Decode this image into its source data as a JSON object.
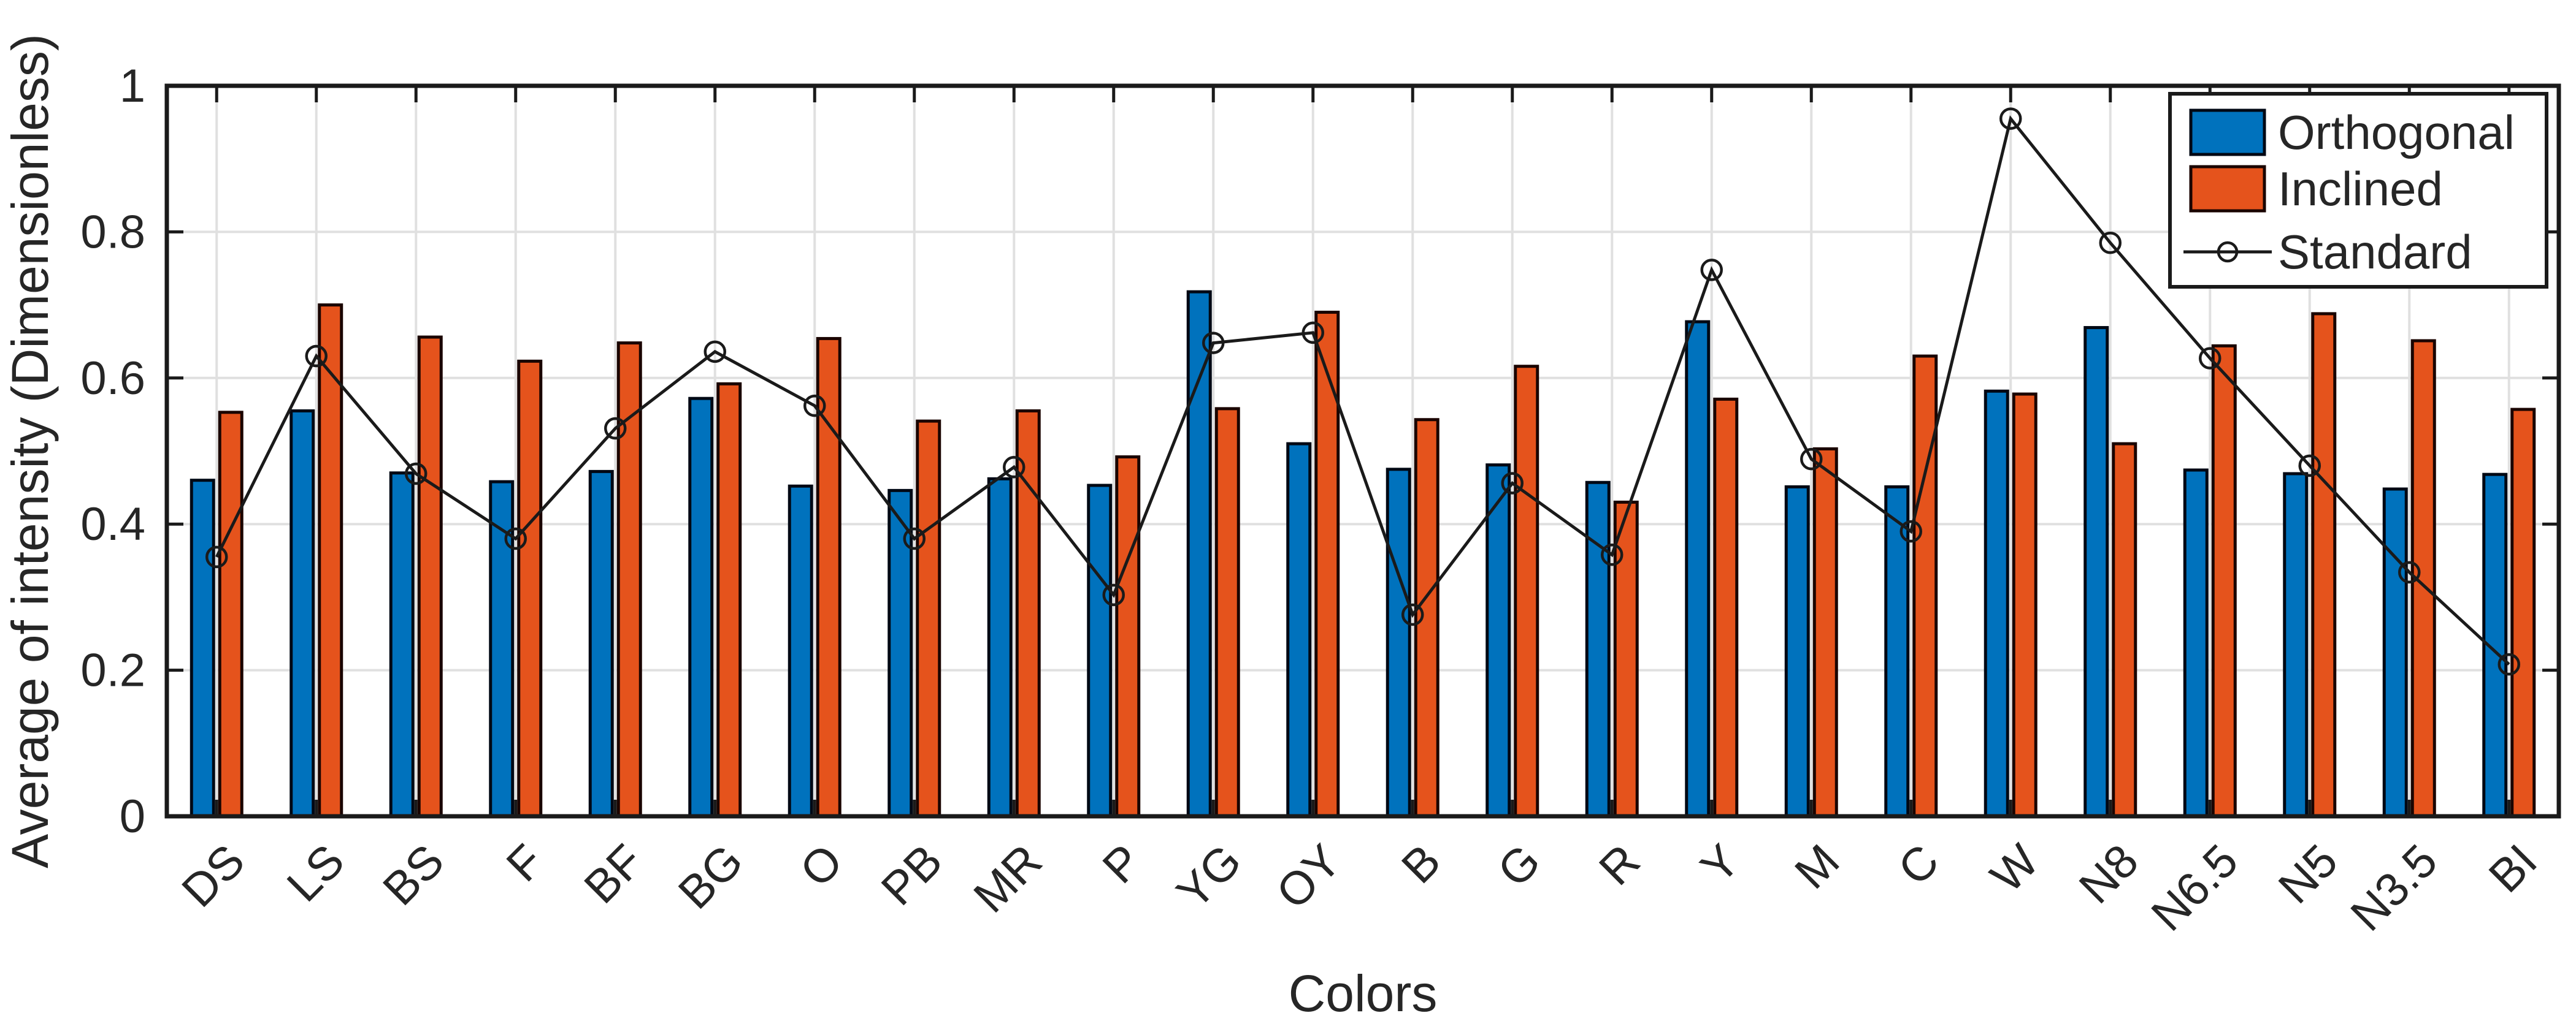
{
  "figure": {
    "background": "#ffffff",
    "text_color": "#262626",
    "axis_color": "#1a1a1a",
    "grid_color": "#e0e0e0"
  },
  "chart_data": {
    "type": "bar",
    "title": "",
    "xlabel": "Colors",
    "ylabel": "Average of intensity (Dimensionless)",
    "ylim": [
      0,
      1
    ],
    "yticks": [
      0,
      0.2,
      0.4,
      0.6,
      0.8,
      1
    ],
    "ytick_labels": [
      "0",
      "0.2",
      "0.4",
      "0.6",
      "0.8",
      "1"
    ],
    "grid": true,
    "legend_position": "top-right",
    "categories": [
      "DS",
      "LS",
      "BS",
      "F",
      "BF",
      "BG",
      "O",
      "PB",
      "MR",
      "P",
      "YG",
      "OY",
      "B",
      "G",
      "R",
      "Y",
      "M",
      "C",
      "W",
      "N8",
      "N6.5",
      "N5",
      "N3.5",
      "BI"
    ],
    "series": [
      {
        "name": "Orthogonal",
        "type": "bar",
        "color": "#0072BD",
        "edge_color": "#000814",
        "values": [
          0.46,
          0.555,
          0.47,
          0.458,
          0.472,
          0.572,
          0.452,
          0.446,
          0.462,
          0.453,
          0.718,
          0.51,
          0.475,
          0.481,
          0.457,
          0.677,
          0.451,
          0.451,
          0.582,
          0.669,
          0.474,
          0.469,
          0.448,
          0.468
        ]
      },
      {
        "name": "Inclined",
        "type": "bar",
        "color": "#E5531C",
        "edge_color": "#1a0400",
        "values": [
          0.553,
          0.7,
          0.656,
          0.623,
          0.648,
          0.592,
          0.654,
          0.541,
          0.555,
          0.492,
          0.558,
          0.69,
          0.543,
          0.616,
          0.43,
          0.571,
          0.503,
          0.63,
          0.578,
          0.51,
          0.644,
          0.688,
          0.651,
          0.557
        ]
      },
      {
        "name": "Standard",
        "type": "line",
        "color": "#1a1a1a",
        "marker": "circle",
        "values": [
          0.355,
          0.63,
          0.469,
          0.38,
          0.531,
          0.636,
          0.562,
          0.38,
          0.478,
          0.303,
          0.648,
          0.662,
          0.276,
          0.456,
          0.358,
          0.748,
          0.489,
          0.39,
          0.955,
          0.785,
          0.627,
          0.48,
          0.334,
          0.208
        ]
      }
    ]
  }
}
